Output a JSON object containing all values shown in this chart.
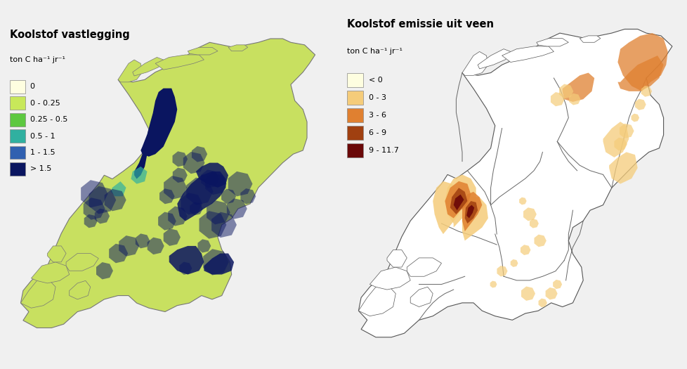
{
  "title_left": "Koolstof vastlegging",
  "title_right": "Koolstof emissie uit veen",
  "subtitle": "ton C ha⁻¹ jr⁻¹",
  "bg_color": "#f0f0f0",
  "left_legend_colors": [
    "#FEFEE0",
    "#C8E85A",
    "#5DC840",
    "#30B0A0",
    "#3060B0",
    "#0A1560"
  ],
  "left_legend_labels": [
    "0",
    "0 - 0.25",
    "0.25 - 0.5",
    "0.5 - 1",
    "1 - 1.5",
    "> 1.5"
  ],
  "right_legend_colors": [
    "#FEFEE0",
    "#F5CC7A",
    "#E08030",
    "#A04010",
    "#6A0808"
  ],
  "right_legend_labels": [
    "< 0",
    "0 - 3",
    "3 - 6",
    "6 - 9",
    "9 - 11.7"
  ],
  "map_outline_color": "#666666",
  "left_fill": "#C8E060",
  "right_fill": "#FFFFFF"
}
